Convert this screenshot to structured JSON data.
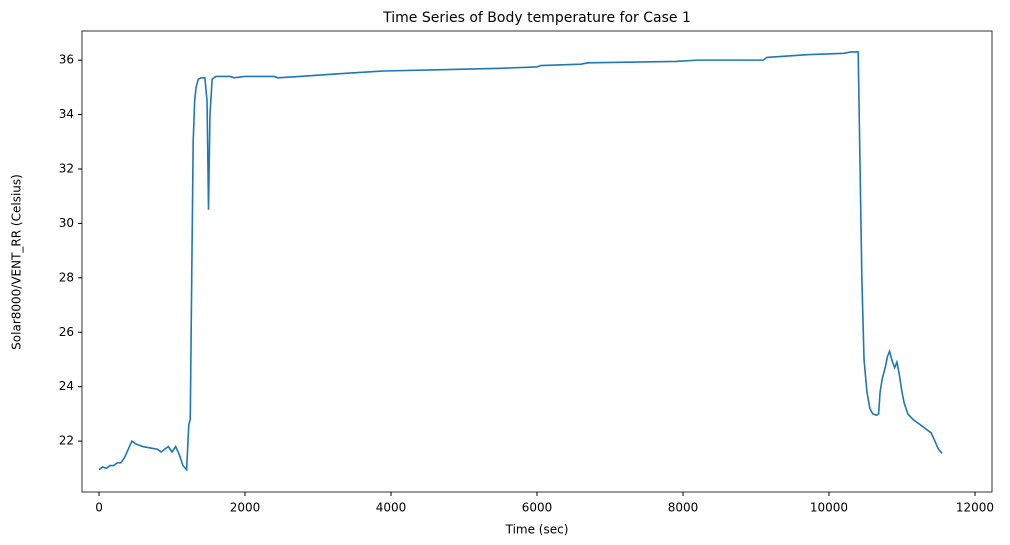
{
  "chart_data": {
    "type": "line",
    "title": "Time Series of Body temperature for Case 1",
    "x_label": "Time (sec)",
    "y_label": "Solar8000/VENT_RR (Celsius)",
    "color": "#1f77b4",
    "x": [
      0,
      50,
      100,
      150,
      200,
      250,
      300,
      350,
      400,
      450,
      500,
      550,
      600,
      700,
      800,
      850,
      900,
      950,
      1000,
      1050,
      1100,
      1150,
      1200,
      1230,
      1250,
      1270,
      1290,
      1310,
      1330,
      1360,
      1400,
      1450,
      1480,
      1500,
      1520,
      1550,
      1600,
      1800,
      1850,
      2000,
      2400,
      2450,
      2750,
      3300,
      3900,
      4700,
      5500,
      6000,
      6050,
      6600,
      6700,
      7900,
      8200,
      9100,
      9150,
      9700,
      10200,
      10300,
      10400,
      10420,
      10450,
      10480,
      10520,
      10560,
      10600,
      10650,
      10680,
      10700,
      10730,
      10770,
      10800,
      10830,
      10870,
      10900,
      10930,
      10960,
      11000,
      11030,
      11080,
      11150,
      11250,
      11350,
      11400,
      11450,
      11500,
      11550
    ],
    "values": [
      20.95,
      21.05,
      21.0,
      21.1,
      21.1,
      21.2,
      21.2,
      21.4,
      21.7,
      22.0,
      21.9,
      21.85,
      21.8,
      21.75,
      21.7,
      21.6,
      21.7,
      21.8,
      21.6,
      21.8,
      21.5,
      21.1,
      20.95,
      22.6,
      22.8,
      28,
      33,
      34.5,
      35.0,
      35.3,
      35.35,
      35.35,
      34.5,
      30.5,
      34,
      35.3,
      35.4,
      35.4,
      35.35,
      35.4,
      35.4,
      35.35,
      35.4,
      35.5,
      35.6,
      35.65,
      35.7,
      35.75,
      35.8,
      35.85,
      35.9,
      35.95,
      36.0,
      36.0,
      36.1,
      36.2,
      36.25,
      36.3,
      36.3,
      33,
      28,
      25,
      23.8,
      23.2,
      23.0,
      22.95,
      23.0,
      23.8,
      24.3,
      24.7,
      25.1,
      25.3,
      24.9,
      24.7,
      24.9,
      24.5,
      23.8,
      23.4,
      23.0,
      22.8,
      22.6,
      22.4,
      22.3,
      22.0,
      21.7,
      21.55
    ],
    "xlim": [
      -233,
      12233
    ],
    "xticks": [
      0,
      2000,
      4000,
      6000,
      8000,
      10000,
      12000
    ],
    "ylim": [
      20.13,
      37.07
    ],
    "yticks": [
      22,
      24,
      26,
      28,
      30,
      32,
      34,
      36
    ]
  }
}
